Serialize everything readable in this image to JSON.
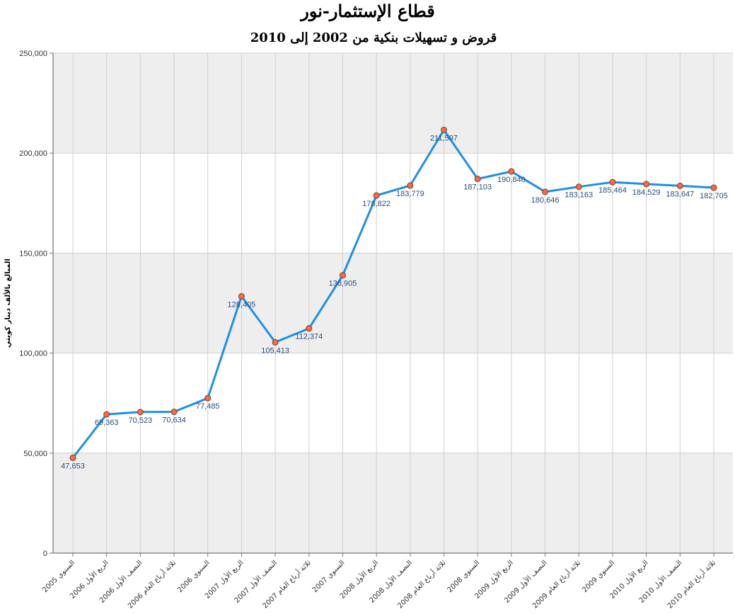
{
  "chart_data": {
    "type": "line",
    "title": "قطاع الإستثمار-نور",
    "subtitle": "قروض و تسهيلات بنكية من 2002 إلى 2010",
    "ylabel": "المبالغ بالألف دينار كويتي",
    "xlabel": "",
    "ylim": [
      0,
      250000
    ],
    "yticks": [
      "0",
      "50,000",
      "100,000",
      "150,000",
      "200,000",
      "250,000"
    ],
    "ytick_values": [
      0,
      50000,
      100000,
      150000,
      200000,
      250000
    ],
    "grid": true,
    "categories": [
      "السنوي 2005",
      "الربع الأول 2006",
      "النصف الأول 2006",
      "ثلاثة أرباع العام 2006",
      "السنوي 2006",
      "الربع الأول 2007",
      "النصف الأول 2007",
      "ثلاثة أرباع العام 2007",
      "السنوي 2007",
      "الربع الأول 2008",
      "النصف الأول 2008",
      "ثلاثة أرباع العام 2008",
      "السنوي 2008",
      "الربع الأول 2009",
      "النصف الأول 2009",
      "ثلاثة أرباع العام 2009",
      "السنوي 2009",
      "الربع الأول 2010",
      "النصف الأول 2010",
      "ثلاثة أرباع العام 2010"
    ],
    "series": [
      {
        "values": [
          47653,
          69363,
          70523,
          70634,
          77485,
          128405,
          105413,
          112374,
          138905,
          178822,
          183779,
          211597,
          187103,
          190840,
          180646,
          183163,
          185464,
          184529,
          183647,
          182705
        ],
        "labels": [
          "47,653",
          "69,363",
          "70,523",
          "70,634",
          "77,485",
          "128,405",
          "105,413",
          "112,374",
          "138,905",
          "178,822",
          "183,779",
          "211,597",
          "187,103",
          "190,840",
          "180,646",
          "183,163",
          "185,464",
          "184,529",
          "183,647",
          "182,705"
        ]
      }
    ],
    "colors": {
      "line": "#1e90e6",
      "marker_fill": "#f26d45",
      "marker_stroke": "#8a3a1f",
      "band": "#eeeeee",
      "grid": "#d0d0d0",
      "label": "#2a4f7a"
    }
  }
}
